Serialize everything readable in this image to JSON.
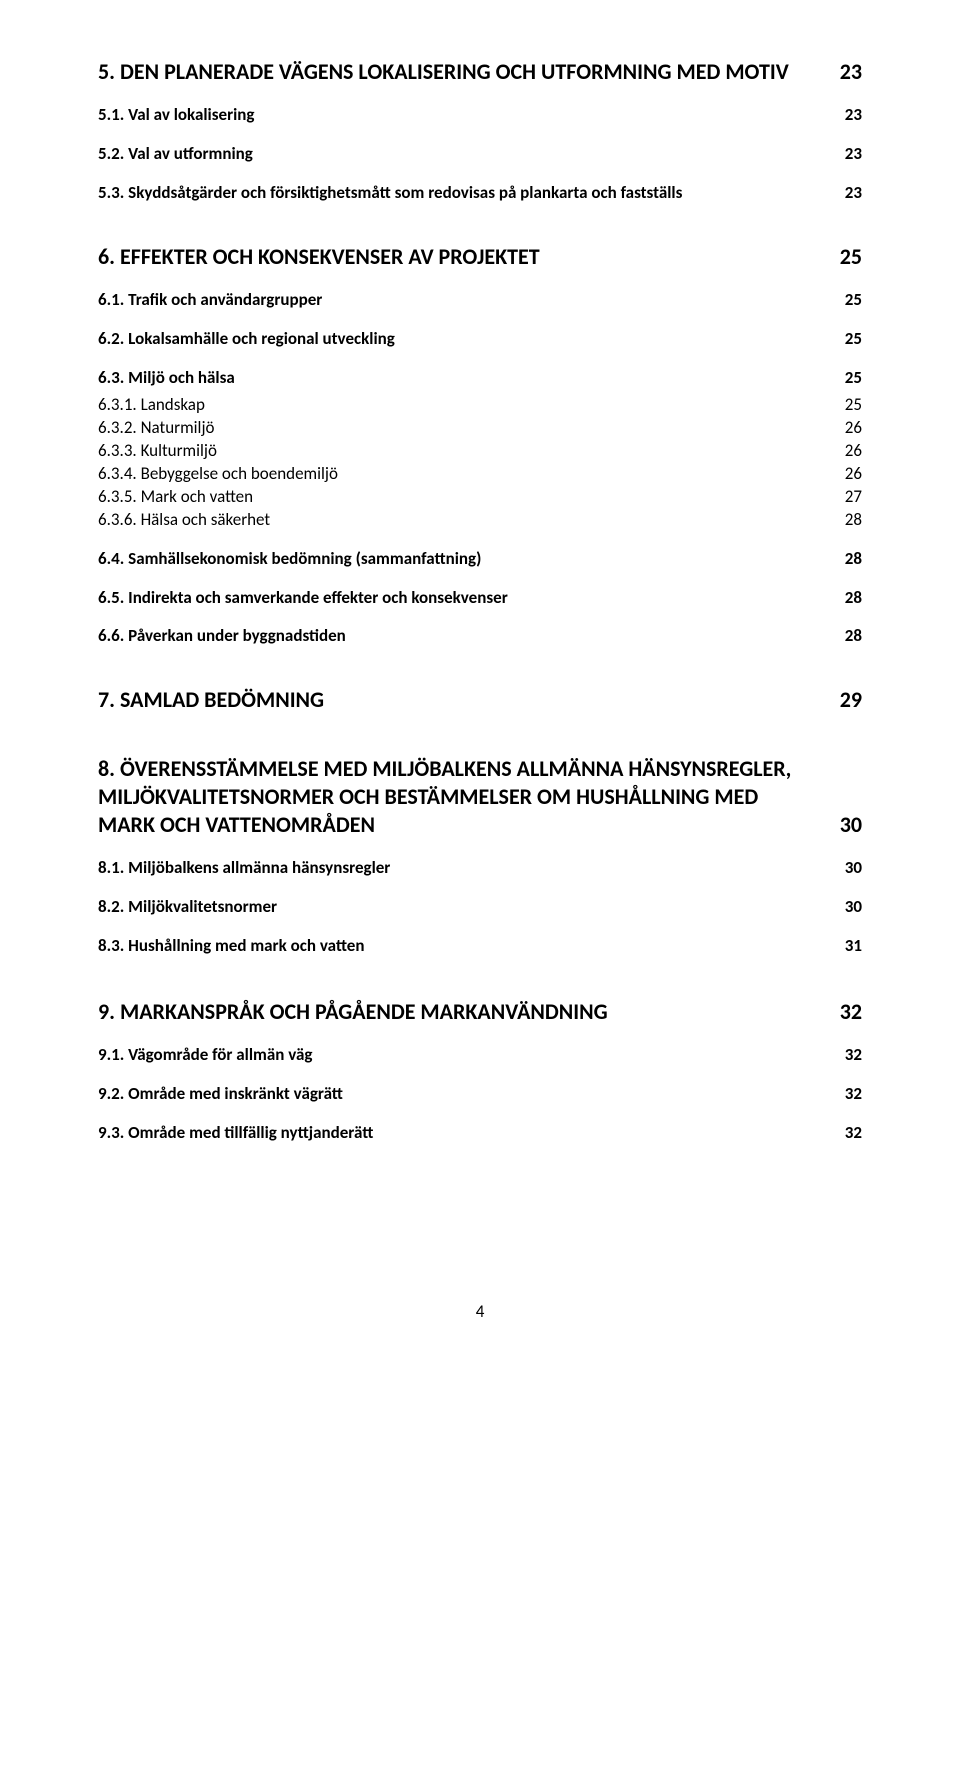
{
  "section5": {
    "title": "5.    DEN PLANERADE VÄGENS LOKALISERING OCH UTFORMNING MED MOTIV",
    "page": "23",
    "items": [
      {
        "label": "5.1.    Val av lokalisering",
        "page": "23"
      },
      {
        "label": "5.2.    Val av utformning",
        "page": "23"
      },
      {
        "label": "5.3.    Skyddsåtgärder och försiktighetsmått som redovisas på plankarta och fastställs",
        "page": "23"
      }
    ]
  },
  "section6": {
    "title": "6.    EFFEKTER OCH KONSEKVENSER AV PROJEKTET",
    "page": "25",
    "items": [
      {
        "label": "6.1.    Trafik och användargrupper",
        "page": "25"
      },
      {
        "label": "6.2.    Lokalsamhälle och regional utveckling",
        "page": "25"
      },
      {
        "label": "6.3.    Miljö och hälsa",
        "page": "25",
        "sub": [
          {
            "label": "6.3.1.       Landskap",
            "page": "25"
          },
          {
            "label": "6.3.2.       Naturmiljö",
            "page": "26"
          },
          {
            "label": "6.3.3.       Kulturmiljö",
            "page": "26"
          },
          {
            "label": "6.3.4.       Bebyggelse och boendemiljö",
            "page": "26"
          },
          {
            "label": "6.3.5.       Mark och vatten",
            "page": "27"
          },
          {
            "label": "6.3.6.       Hälsa och säkerhet",
            "page": "28"
          }
        ]
      },
      {
        "label": "6.4.    Samhällsekonomisk bedömning (sammanfattning)",
        "page": "28"
      },
      {
        "label": "6.5.    Indirekta och samverkande effekter och konsekvenser",
        "page": "28"
      },
      {
        "label": "6.6.    Påverkan under byggnadstiden",
        "page": "28"
      }
    ]
  },
  "section7": {
    "title": "7.    SAMLAD BEDÖMNING",
    "page": "29"
  },
  "section8": {
    "title": "8.    ÖVERENSSTÄMMELSE MED MILJÖBALKENS ALLMÄNNA HÄNSYNSREGLER, MILJÖKVALITETSNORMER OCH BESTÄMMELSER OM HUSHÅLLNING MED MARK OCH VATTENOMRÅDEN",
    "page": "30",
    "items": [
      {
        "label": "8.1.    Miljöbalkens allmänna hänsynsregler",
        "page": "30"
      },
      {
        "label": "8.2.    Miljökvalitetsnormer",
        "page": "30"
      },
      {
        "label": "8.3.    Hushållning med mark och vatten",
        "page": "31"
      }
    ]
  },
  "section9": {
    "title": "9.    MARKANSPRÅK OCH PÅGÅENDE MARKANVÄNDNING",
    "page": "32",
    "items": [
      {
        "label": "9.1.    Vägområde för allmän väg",
        "page": "32"
      },
      {
        "label": "9.2.    Område med inskränkt vägrätt",
        "page": "32"
      },
      {
        "label": "9.3.    Område med tillfällig nyttjanderätt",
        "page": "32"
      }
    ]
  },
  "pageNumber": "4"
}
